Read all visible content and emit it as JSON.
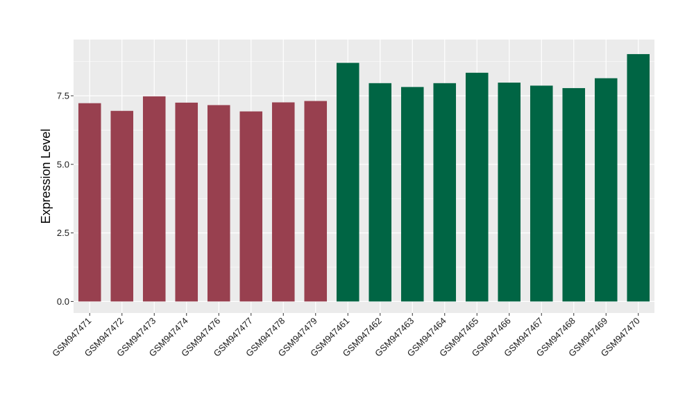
{
  "chart_data": {
    "type": "bar",
    "ylabel": "Expression Level",
    "xlabel": "",
    "ylim": [
      -0.42,
      9.55
    ],
    "yticks": [
      0.0,
      2.5,
      5.0,
      7.5
    ],
    "ytick_labels": [
      "0.0",
      "2.5",
      "5.0",
      "7.5"
    ],
    "grid": true,
    "legend": "none",
    "categories": [
      "GSM947471",
      "GSM947472",
      "GSM947473",
      "GSM947474",
      "GSM947476",
      "GSM947477",
      "GSM947478",
      "GSM947479",
      "GSM947461",
      "GSM947462",
      "GSM947463",
      "GSM947464",
      "GSM947465",
      "GSM947466",
      "GSM947467",
      "GSM947468",
      "GSM947469",
      "GSM947470"
    ],
    "values": [
      7.23,
      6.95,
      7.48,
      7.25,
      7.16,
      6.93,
      7.26,
      7.31,
      8.7,
      7.96,
      7.82,
      7.96,
      8.34,
      7.98,
      7.87,
      7.78,
      8.14,
      9.02
    ],
    "groups": [
      0,
      0,
      0,
      0,
      0,
      0,
      0,
      0,
      1,
      1,
      1,
      1,
      1,
      1,
      1,
      1,
      1,
      1
    ],
    "colors": [
      "#98404f",
      "#006544"
    ],
    "panel_color": "#ebebeb",
    "grid_color": "#ffffff"
  }
}
